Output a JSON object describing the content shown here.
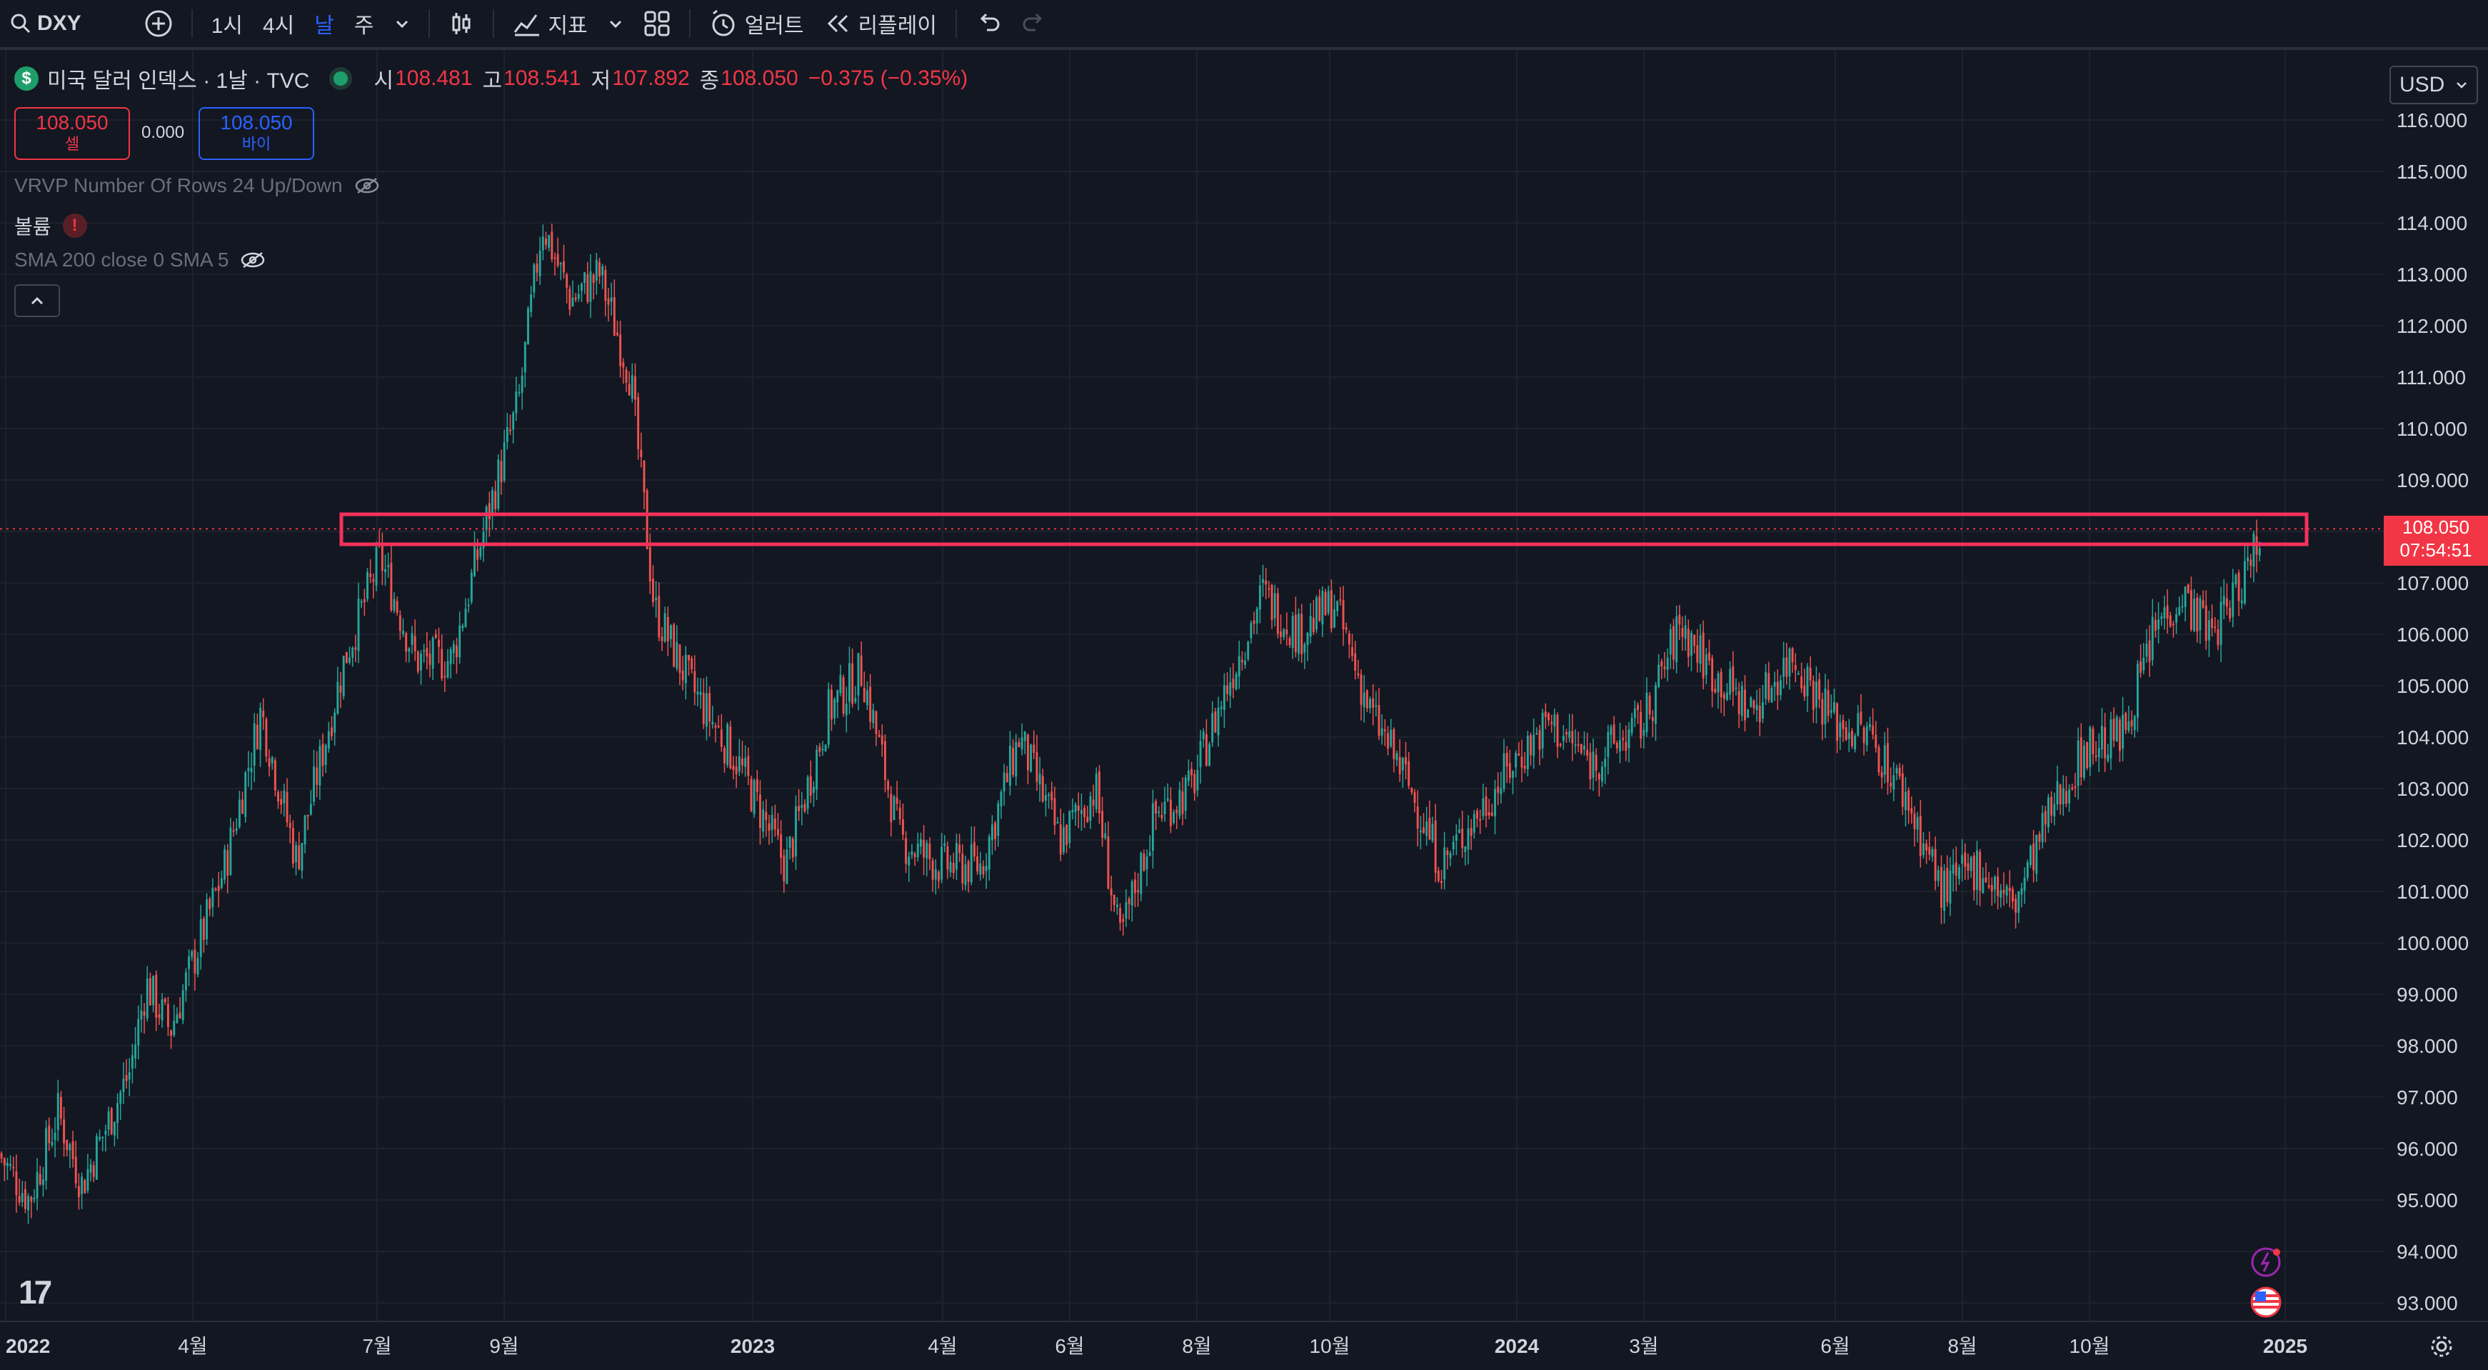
{
  "toolbar": {
    "symbol": "DXY",
    "intervals": [
      "1시",
      "4시",
      "날",
      "주"
    ],
    "active_interval": "날",
    "indicators_label": "지표",
    "alert_label": "얼러트",
    "replay_label": "리플레이"
  },
  "legend": {
    "title": "미국 달러 인덱스 · 1날 · TVC",
    "open_key": "시",
    "open": "108.481",
    "high_key": "고",
    "high": "108.541",
    "low_key": "저",
    "low": "107.892",
    "close_key": "종",
    "close": "108.050",
    "change": "−0.375 (−0.35%)"
  },
  "trade": {
    "sell_price": "108.050",
    "sell_label": "셀",
    "spread": "0.000",
    "buy_price": "108.050",
    "buy_label": "바이"
  },
  "indicators": {
    "vrvp": "VRVP Number Of Rows 24 Up/Down",
    "volume": "볼륨",
    "volume_warning": "!",
    "sma": "SMA 200 close 0 SMA 5"
  },
  "price_scale": {
    "currency": "USD",
    "current_price": "108.050",
    "countdown": "07:54:51"
  },
  "colors": {
    "background": "#131722",
    "up": "#26a69a",
    "down": "#ef5350",
    "highlight_box": "#f7315c",
    "accent": "#2962ff"
  },
  "chart_data": {
    "type": "candlestick",
    "symbol": "DXY",
    "interval": "1D",
    "ylim": [
      92.8,
      116.4
    ],
    "y_ticks": [
      "116.000",
      "115.000",
      "114.000",
      "113.000",
      "112.000",
      "111.000",
      "110.000",
      "109.000",
      "108.000",
      "107.000",
      "106.000",
      "105.000",
      "104.000",
      "103.000",
      "102.000",
      "101.000",
      "100.000",
      "99.000",
      "98.000",
      "97.000",
      "96.000",
      "95.000",
      "94.000",
      "93.000"
    ],
    "x_ticks": [
      {
        "label": "2022",
        "bold": true
      },
      {
        "label": "4월",
        "bold": false
      },
      {
        "label": "7월",
        "bold": false
      },
      {
        "label": "9월",
        "bold": false
      },
      {
        "label": "2023",
        "bold": true
      },
      {
        "label": "4월",
        "bold": false
      },
      {
        "label": "6월",
        "bold": false
      },
      {
        "label": "8월",
        "bold": false
      },
      {
        "label": "10월",
        "bold": false
      },
      {
        "label": "2024",
        "bold": true
      },
      {
        "label": "3월",
        "bold": false
      },
      {
        "label": "6월",
        "bold": false
      },
      {
        "label": "8월",
        "bold": false
      },
      {
        "label": "10월",
        "bold": false
      },
      {
        "label": "2025",
        "bold": true
      }
    ],
    "price_path": [
      {
        "t": 0.0,
        "v": 95.9
      },
      {
        "t": 0.013,
        "v": 95.0
      },
      {
        "t": 0.025,
        "v": 96.7
      },
      {
        "t": 0.035,
        "v": 95.3
      },
      {
        "t": 0.055,
        "v": 97.5
      },
      {
        "t": 0.062,
        "v": 99.2
      },
      {
        "t": 0.072,
        "v": 98.3
      },
      {
        "t": 0.095,
        "v": 101.5
      },
      {
        "t": 0.11,
        "v": 104.5
      },
      {
        "t": 0.125,
        "v": 101.6
      },
      {
        "t": 0.145,
        "v": 105.5
      },
      {
        "t": 0.16,
        "v": 107.5
      },
      {
        "t": 0.175,
        "v": 105.5
      },
      {
        "t": 0.19,
        "v": 105.5
      },
      {
        "t": 0.205,
        "v": 108.3
      },
      {
        "t": 0.218,
        "v": 110.5
      },
      {
        "t": 0.228,
        "v": 114.0
      },
      {
        "t": 0.24,
        "v": 112.5
      },
      {
        "t": 0.252,
        "v": 113.0
      },
      {
        "t": 0.265,
        "v": 111.0
      },
      {
        "t": 0.275,
        "v": 106.5
      },
      {
        "t": 0.29,
        "v": 105.0
      },
      {
        "t": 0.31,
        "v": 103.5
      },
      {
        "t": 0.33,
        "v": 101.5
      },
      {
        "t": 0.348,
        "v": 104.5
      },
      {
        "t": 0.362,
        "v": 105.3
      },
      {
        "t": 0.378,
        "v": 102.0
      },
      {
        "t": 0.395,
        "v": 101.5
      },
      {
        "t": 0.412,
        "v": 101.5
      },
      {
        "t": 0.428,
        "v": 104.0
      },
      {
        "t": 0.445,
        "v": 102.0
      },
      {
        "t": 0.46,
        "v": 103.0
      },
      {
        "t": 0.47,
        "v": 100.0
      },
      {
        "t": 0.485,
        "v": 102.5
      },
      {
        "t": 0.5,
        "v": 103.0
      },
      {
        "t": 0.515,
        "v": 105.0
      },
      {
        "t": 0.53,
        "v": 106.8
      },
      {
        "t": 0.545,
        "v": 106.0
      },
      {
        "t": 0.56,
        "v": 106.6
      },
      {
        "t": 0.575,
        "v": 104.5
      },
      {
        "t": 0.59,
        "v": 103.2
      },
      {
        "t": 0.605,
        "v": 101.5
      },
      {
        "t": 0.62,
        "v": 102.5
      },
      {
        "t": 0.635,
        "v": 103.5
      },
      {
        "t": 0.65,
        "v": 104.3
      },
      {
        "t": 0.668,
        "v": 103.5
      },
      {
        "t": 0.69,
        "v": 104.3
      },
      {
        "t": 0.705,
        "v": 106.2
      },
      {
        "t": 0.718,
        "v": 105.3
      },
      {
        "t": 0.735,
        "v": 104.5
      },
      {
        "t": 0.752,
        "v": 105.6
      },
      {
        "t": 0.77,
        "v": 104.3
      },
      {
        "t": 0.785,
        "v": 104.0
      },
      {
        "t": 0.8,
        "v": 102.8
      },
      {
        "t": 0.815,
        "v": 101.0
      },
      {
        "t": 0.83,
        "v": 101.5
      },
      {
        "t": 0.845,
        "v": 100.7
      },
      {
        "t": 0.86,
        "v": 102.5
      },
      {
        "t": 0.875,
        "v": 103.8
      },
      {
        "t": 0.89,
        "v": 104.0
      },
      {
        "t": 0.905,
        "v": 106.2
      },
      {
        "t": 0.915,
        "v": 106.8
      },
      {
        "t": 0.928,
        "v": 106.0
      },
      {
        "t": 0.94,
        "v": 107.0
      },
      {
        "t": 0.948,
        "v": 108.05
      }
    ]
  }
}
